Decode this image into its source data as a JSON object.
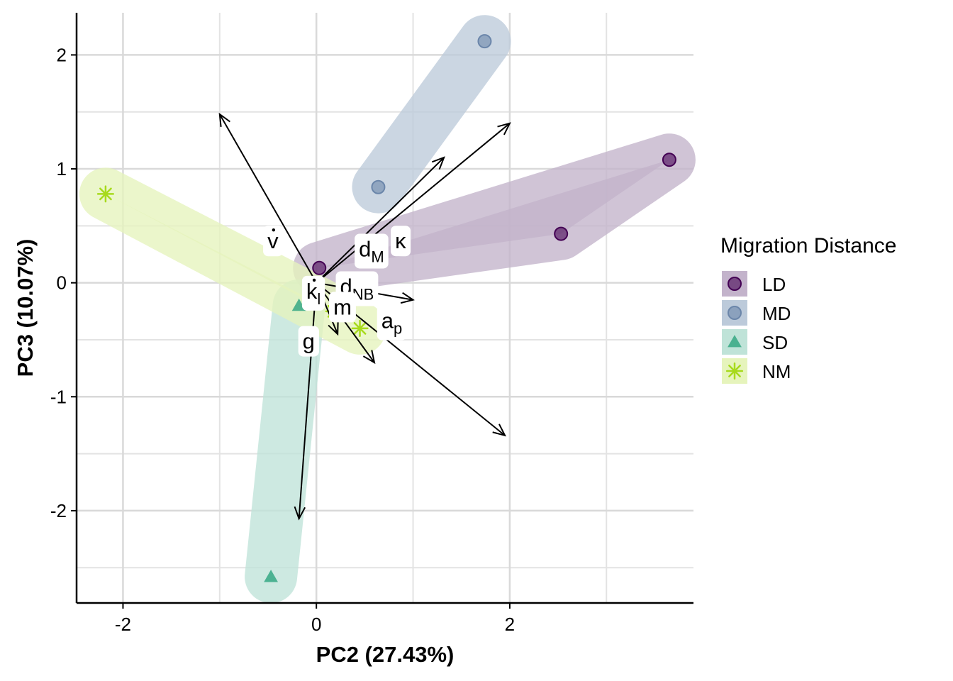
{
  "chart_data": {
    "type": "scatter",
    "xlabel": "PC2 (27.43%)",
    "ylabel": "PC3 (10.07%)",
    "xlim": [
      -2.48,
      3.9
    ],
    "ylim": [
      -2.81,
      2.37
    ],
    "x_ticks": [
      {
        "value": -2,
        "label": "-2"
      },
      {
        "value": 0,
        "label": "0"
      },
      {
        "value": 2,
        "label": "2"
      }
    ],
    "y_ticks": [
      {
        "value": -2,
        "label": "-2"
      },
      {
        "value": -1,
        "label": "-1"
      },
      {
        "value": 0,
        "label": "0"
      },
      {
        "value": 1,
        "label": "1"
      },
      {
        "value": 2,
        "label": "2"
      }
    ],
    "minor_x_gridlines": [
      -1,
      1,
      3
    ],
    "minor_y_gridlines": [
      -2.5,
      -1.5,
      -0.5,
      0.5,
      1.5
    ],
    "grid": true,
    "legend": {
      "title": "Migration Distance",
      "position": "right"
    },
    "series": [
      {
        "name": "LD",
        "shape": "circle",
        "color": "#440154",
        "hull_color": "#c3b3cb",
        "points": [
          [
            0.03,
            0.13
          ],
          [
            2.53,
            0.43
          ],
          [
            3.65,
            1.08
          ]
        ]
      },
      {
        "name": "MD",
        "shape": "circle",
        "color": "#6b86aa",
        "hull_color": "#bccada",
        "points": [
          [
            0.64,
            0.84
          ],
          [
            1.74,
            2.12
          ]
        ]
      },
      {
        "name": "SD",
        "shape": "triangle",
        "color": "#35a884",
        "hull_color": "#bfe3d8",
        "points": [
          [
            -0.47,
            -2.58
          ],
          [
            -0.18,
            -0.2
          ]
        ]
      },
      {
        "name": "NM",
        "shape": "asterisk",
        "color": "#a7da1c",
        "hull_color": "#e6f4bc",
        "points": [
          [
            -2.18,
            0.78
          ],
          [
            0.45,
            -0.4
          ],
          [
            0.18,
            -0.25
          ]
        ]
      }
    ],
    "loadings": [
      {
        "label_base": "v",
        "label_dot": true,
        "label_sub": "",
        "x": -1.0,
        "y": 1.48,
        "label_x": -0.45,
        "label_y": 0.37
      },
      {
        "label_base": "d",
        "label_dot": false,
        "label_sub": "M",
        "x": 1.32,
        "y": 1.1,
        "label_x": 0.57,
        "label_y": 0.3
      },
      {
        "label_base": "κ",
        "label_dot": false,
        "label_sub": "",
        "x": 2.0,
        "y": 1.4,
        "label_x": 0.87,
        "label_y": 0.37
      },
      {
        "label_base": "d",
        "label_dot": false,
        "label_sub": "NB",
        "x": 1.0,
        "y": -0.15,
        "label_x": 0.42,
        "label_y": -0.03
      },
      {
        "label_base": "k",
        "label_dot": true,
        "label_sub": "l",
        "x": 0.6,
        "y": -0.7,
        "label_x": -0.03,
        "label_y": -0.07
      },
      {
        "label_base": "a",
        "label_dot": false,
        "label_sub": "p",
        "x": 1.95,
        "y": -1.34,
        "label_x": 0.78,
        "label_y": -0.33
      },
      {
        "label_base": "g",
        "label_dot": false,
        "label_sub": "",
        "x": -0.18,
        "y": -2.07,
        "label_x": -0.08,
        "label_y": -0.51
      },
      {
        "label_base": "m",
        "label_dot": false,
        "label_sub": "",
        "x": 0.22,
        "y": -0.45,
        "label_x": 0.27,
        "label_y": -0.21
      }
    ]
  }
}
